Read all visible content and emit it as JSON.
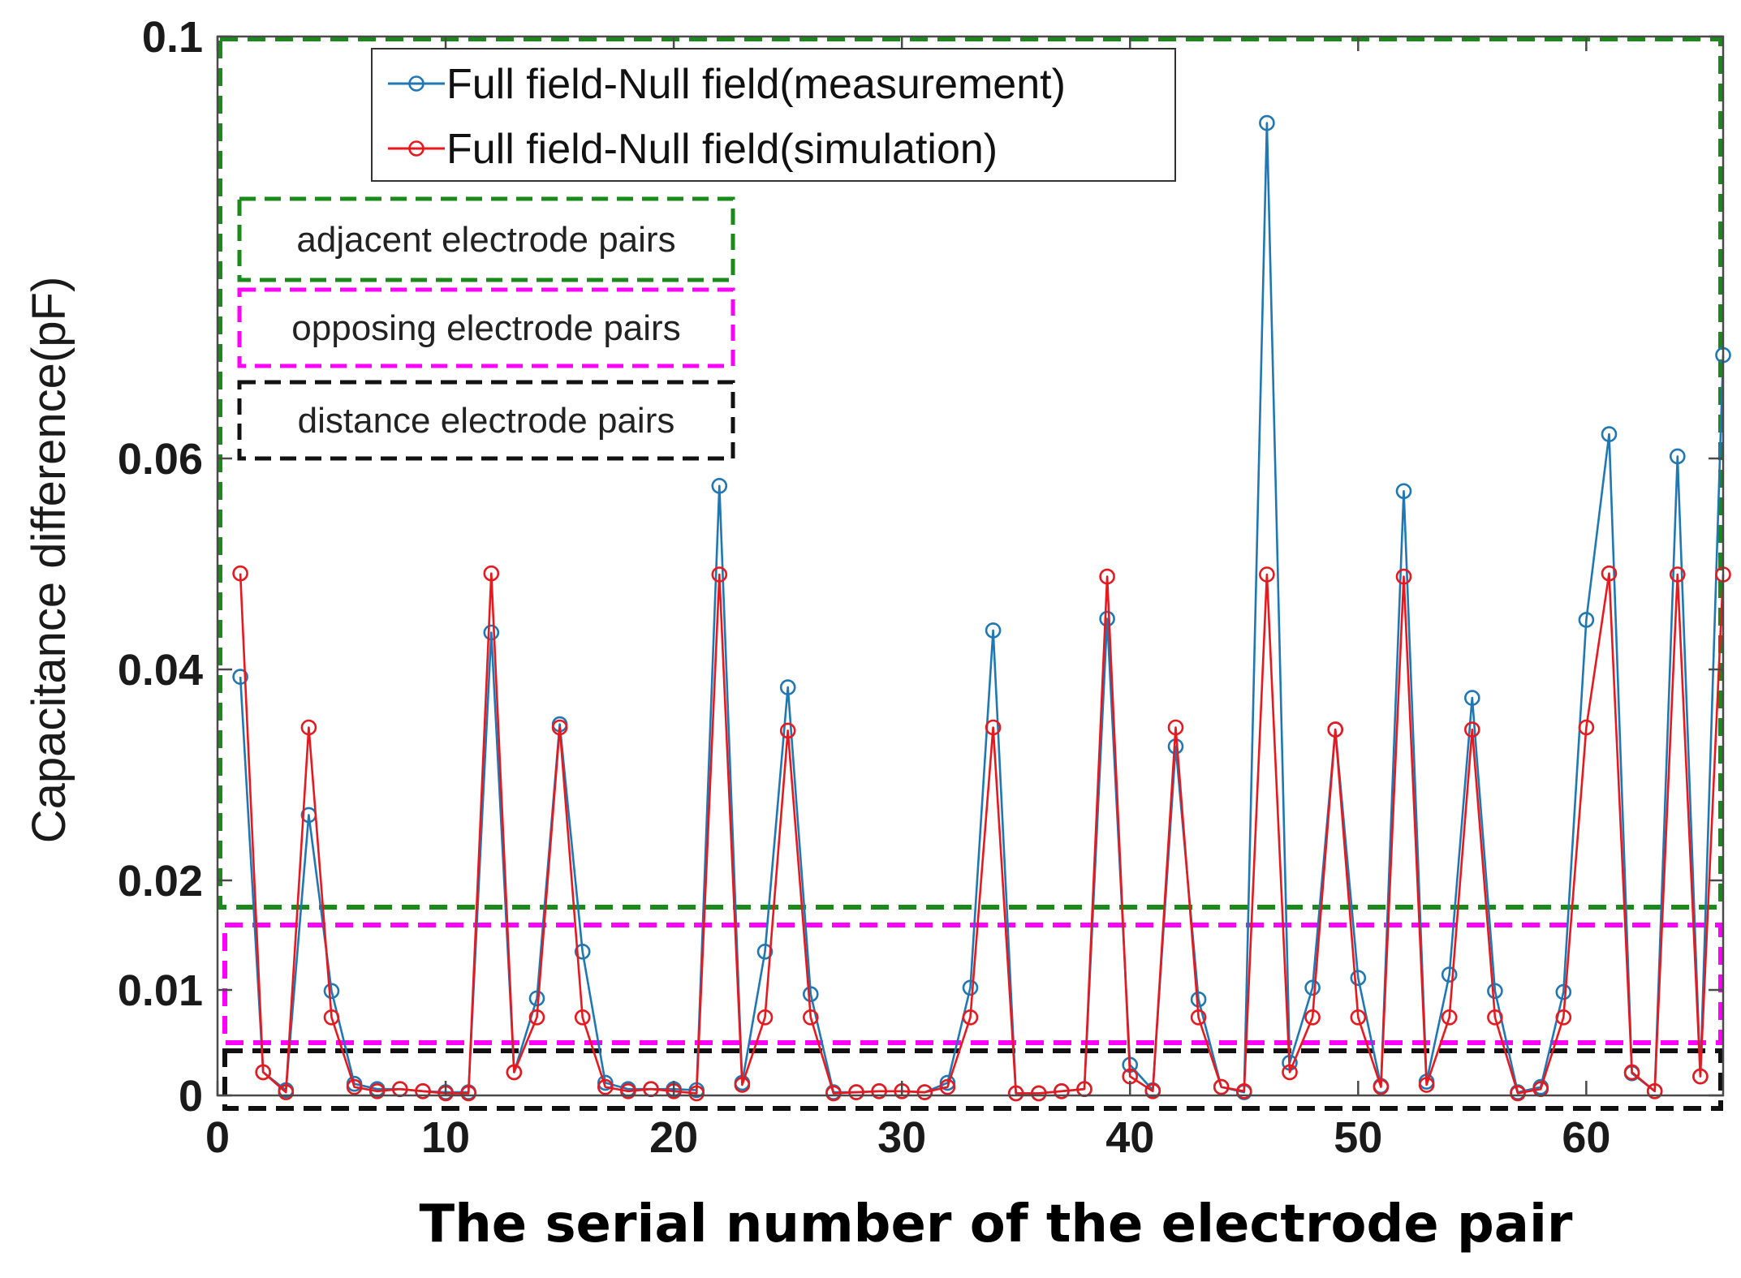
{
  "chart_data": {
    "type": "line",
    "title": "",
    "xlabel": "The serial number of the electrode pair",
    "ylabel": "Capacitance difference(pF)",
    "xlim": [
      0,
      66
    ],
    "ylim": [
      0,
      0.1
    ],
    "x_ticks": [
      0,
      10,
      20,
      30,
      40,
      50,
      60
    ],
    "x_tick_labels": [
      "0",
      "10",
      "20",
      "30",
      "40",
      "50",
      "60"
    ],
    "y_ticks": [
      0,
      0.01,
      0.02,
      0.04,
      0.06,
      0.1
    ],
    "y_tick_labels": [
      "0",
      "0.01",
      "0.02",
      "0.04",
      "0.06",
      "0.1"
    ],
    "legend_position": "top-left",
    "x": [
      1,
      2,
      3,
      4,
      5,
      6,
      7,
      8,
      9,
      10,
      11,
      12,
      13,
      14,
      15,
      16,
      17,
      18,
      19,
      20,
      21,
      22,
      23,
      24,
      25,
      26,
      27,
      28,
      29,
      30,
      31,
      32,
      33,
      34,
      35,
      36,
      37,
      38,
      39,
      40,
      41,
      42,
      43,
      44,
      45,
      46,
      47,
      48,
      49,
      50,
      51,
      52,
      53,
      54,
      55,
      56,
      57,
      58,
      59,
      60,
      61,
      62,
      63,
      64,
      65,
      66
    ],
    "series": [
      {
        "name": "Full field-Null field(measurement)",
        "color": "#1f77b4",
        "values": [
          0.0393,
          0.0022,
          0.0005,
          0.0262,
          0.0099,
          0.0011,
          0.0006,
          0.0006,
          0.0004,
          0.0003,
          0.0003,
          0.0435,
          0.0022,
          0.0092,
          0.0348,
          0.0135,
          0.0012,
          0.0006,
          0.0006,
          0.0006,
          0.0005,
          0.0574,
          0.0012,
          0.0135,
          0.0383,
          0.0096,
          0.0003,
          0.0003,
          0.0004,
          0.0004,
          0.0003,
          0.0012,
          0.0102,
          0.0437,
          0.0002,
          0.0002,
          0.0004,
          0.0006,
          0.0448,
          0.0029,
          0.0005,
          0.0327,
          0.0091,
          0.0008,
          0.0003,
          0.0918,
          0.0031,
          0.0102,
          0.0343,
          0.0111,
          0.0009,
          0.0569,
          0.0013,
          0.0114,
          0.0373,
          0.0099,
          0.0003,
          0.0008,
          0.0098,
          0.0447,
          0.0623,
          0.0021,
          0.0004,
          0.0602,
          0.0018,
          0.0698
        ]
      },
      {
        "name": "Full field-Null field(simulation)",
        "color": "#e8191e",
        "values": [
          0.0491,
          0.0022,
          0.0003,
          0.0345,
          0.0074,
          0.0008,
          0.0004,
          0.0006,
          0.0004,
          0.0002,
          0.0002,
          0.0491,
          0.0022,
          0.0074,
          0.0345,
          0.0074,
          0.0008,
          0.0004,
          0.0006,
          0.0004,
          0.0002,
          0.049,
          0.001,
          0.0074,
          0.0342,
          0.0074,
          0.0002,
          0.0003,
          0.0004,
          0.0004,
          0.0003,
          0.0008,
          0.0074,
          0.0345,
          0.0002,
          0.0002,
          0.0004,
          0.0006,
          0.0488,
          0.0018,
          0.0004,
          0.0345,
          0.0074,
          0.0008,
          0.0004,
          0.049,
          0.0022,
          0.0074,
          0.0343,
          0.0074,
          0.0008,
          0.0488,
          0.001,
          0.0074,
          0.0343,
          0.0074,
          0.0002,
          0.0006,
          0.0074,
          0.0345,
          0.0491,
          0.0022,
          0.0004,
          0.049,
          0.0018,
          0.049
        ]
      }
    ],
    "annotations": [
      {
        "text": "adjacent electrode pairs",
        "color": "#1a8a1a"
      },
      {
        "text": "opposing electrode pairs",
        "color": "#ff00ff"
      },
      {
        "text": "distance electrode pairs",
        "color": "#111111"
      }
    ],
    "band_colors": {
      "adjacent": "#1a8a1a",
      "opposing": "#ff00ff",
      "distance": "#111111"
    }
  }
}
